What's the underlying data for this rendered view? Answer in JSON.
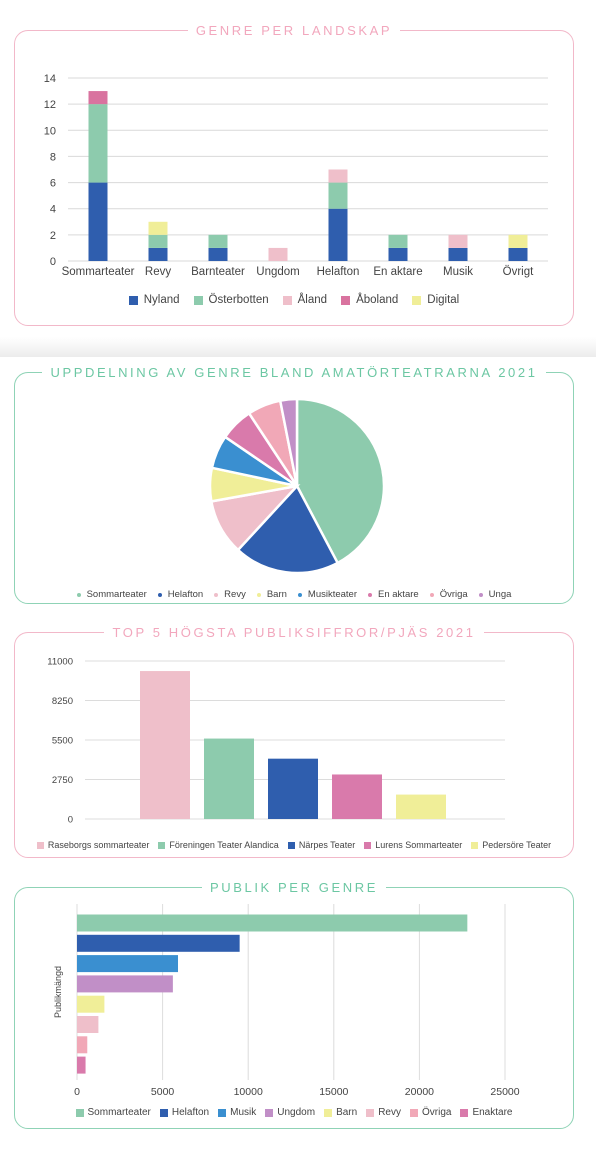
{
  "colors": {
    "Nyland": "#2f5eae",
    "Österbotten": "#8dcbad",
    "Åland": "#efbfca",
    "Åboland": "#d9739f",
    "Digital": "#f0ee98"
  },
  "chart_data": [
    {
      "type": "bar",
      "stacked": true,
      "title": "GENRE PER LANDSKAP",
      "categories": [
        "Sommarteater",
        "Revy",
        "Barnteater",
        "Ungdom",
        "Helafton",
        "En aktare",
        "Musik",
        "Övrigt"
      ],
      "ylim": [
        0,
        14
      ],
      "yticks": [
        "0",
        "2",
        "4",
        "6",
        "8",
        "10",
        "12",
        "14"
      ],
      "grid": true,
      "legend_position": "bottom",
      "series": [
        {
          "name": "Nyland",
          "color": "#2f5eae",
          "values": [
            6,
            1,
            1,
            0,
            4,
            1,
            1,
            1
          ]
        },
        {
          "name": "Österbotten",
          "color": "#8dcbad",
          "values": [
            6,
            1,
            1,
            0,
            2,
            1,
            0,
            0
          ]
        },
        {
          "name": "Åland",
          "color": "#efbfca",
          "values": [
            0,
            0,
            0,
            1,
            1,
            0,
            1,
            0
          ]
        },
        {
          "name": "Åboland",
          "color": "#d9739f",
          "values": [
            1,
            0,
            0,
            0,
            0,
            0,
            0,
            0
          ]
        },
        {
          "name": "Digital",
          "color": "#f0ee98",
          "values": [
            0,
            1,
            0,
            0,
            0,
            0,
            0,
            1
          ]
        }
      ]
    },
    {
      "type": "pie",
      "title": "UPPDELNING AV GENRE BLAND AMATÖRTEATRARNA 2021",
      "legend_position": "bottom",
      "slices": [
        {
          "label": "Sommarteater",
          "value": 41,
          "color": "#8dcbad"
        },
        {
          "label": "Helafton",
          "value": 19,
          "color": "#2f5eae"
        },
        {
          "label": "Revy",
          "value": 10,
          "color": "#efbfca"
        },
        {
          "label": "Barn",
          "value": 6,
          "color": "#f0ee98"
        },
        {
          "label": "Musikteater",
          "value": 6,
          "color": "#3a8fd0"
        },
        {
          "label": "En aktare",
          "value": 6,
          "color": "#d97aab"
        },
        {
          "label": "Övriga",
          "value": 6,
          "color": "#f1a8b7"
        },
        {
          "label": "Unga",
          "value": 3,
          "color": "#c18fc7"
        }
      ]
    },
    {
      "type": "bar",
      "title": "TOP 5 HÖGSTA PUBLIKSIFFROR/PJÄS 2021",
      "ylim": [
        0,
        11000
      ],
      "yticks": [
        "0",
        "2750",
        "5500",
        "8250",
        "11000"
      ],
      "grid": true,
      "legend_position": "bottom",
      "series": [
        {
          "name": "Raseborgs sommarteater",
          "value": 10300,
          "color": "#efbfca"
        },
        {
          "name": "Föreningen Teater Alandica",
          "value": 5600,
          "color": "#8dcbad"
        },
        {
          "name": "Närpes Teater",
          "value": 4200,
          "color": "#2f5eae"
        },
        {
          "name": "Lurens Sommarteater",
          "value": 3100,
          "color": "#d97aab"
        },
        {
          "name": "Pedersöre Teater",
          "value": 1700,
          "color": "#f0ee98"
        }
      ]
    },
    {
      "type": "bar",
      "orientation": "horizontal",
      "title": "PUBLIK PER GENRE",
      "ylabel": "Publikmängd",
      "xlim": [
        0,
        25000
      ],
      "xticks": [
        "0",
        "5000",
        "10000",
        "15000",
        "20000",
        "25000"
      ],
      "grid": true,
      "legend_position": "bottom",
      "series": [
        {
          "name": "Sommarteater",
          "value": 22800,
          "color": "#8dcbad"
        },
        {
          "name": "Helafton",
          "value": 9500,
          "color": "#2f5eae"
        },
        {
          "name": "Musik",
          "value": 5900,
          "color": "#3a8fd0"
        },
        {
          "name": "Ungdom",
          "value": 5600,
          "color": "#c18fc7"
        },
        {
          "name": "Barn",
          "value": 1600,
          "color": "#f0ee98"
        },
        {
          "name": "Revy",
          "value": 1250,
          "color": "#efbfca"
        },
        {
          "name": "Övriga",
          "value": 600,
          "color": "#f1a8b7"
        },
        {
          "name": "Enaktare",
          "value": 500,
          "color": "#d97aab"
        }
      ]
    }
  ]
}
